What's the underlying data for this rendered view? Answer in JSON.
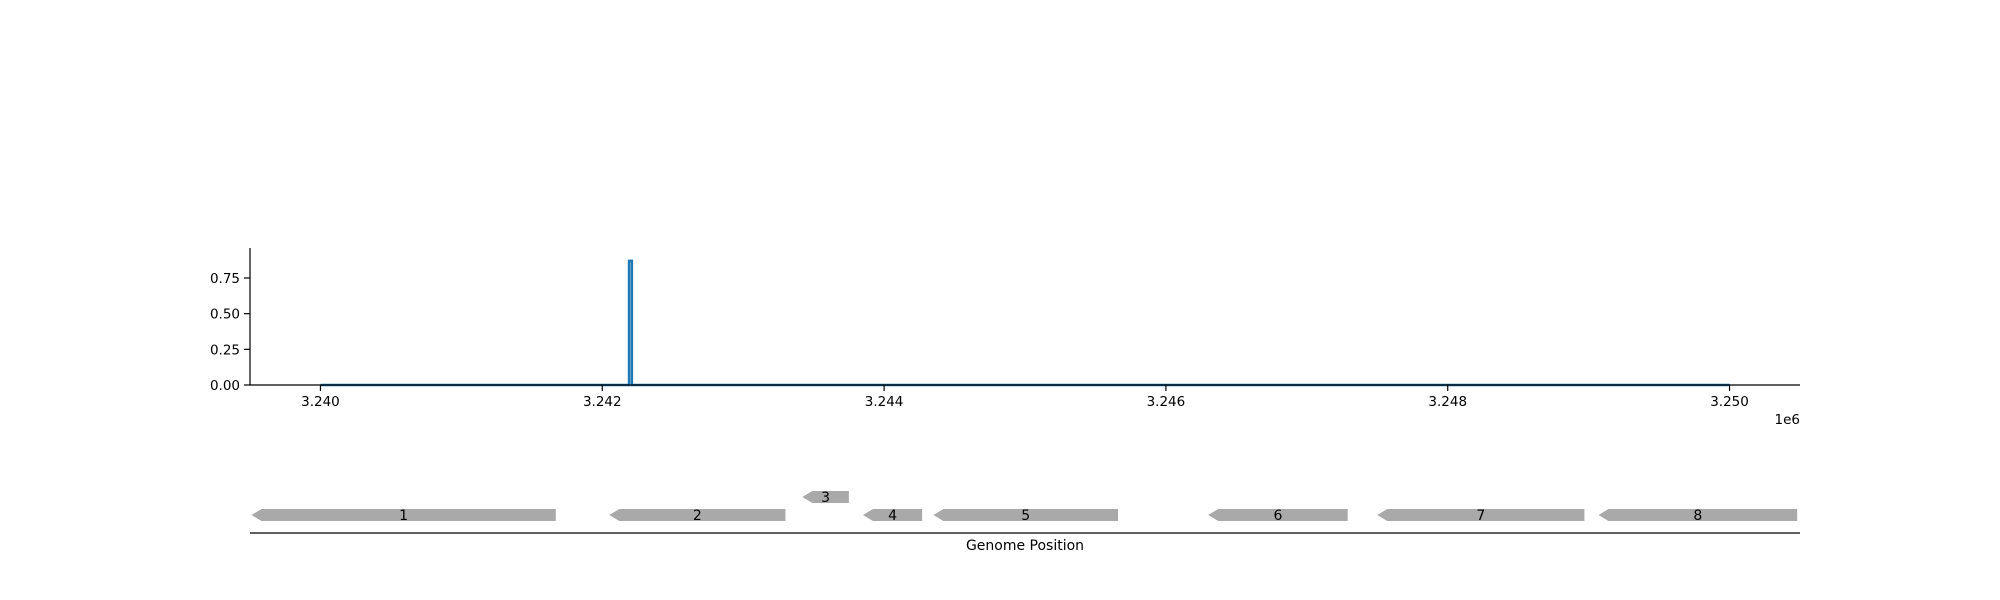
{
  "chart_data": [
    {
      "type": "line",
      "title": "",
      "xlabel": "",
      "ylabel": "",
      "x_offset_label": "1e6",
      "xlim": [
        3.2395,
        3.2505
      ],
      "ylim": [
        0.0,
        0.95
      ],
      "x_ticks": [
        3.24,
        3.242,
        3.244,
        3.246,
        3.248,
        3.25
      ],
      "x_tick_labels": [
        "3.240",
        "3.242",
        "3.244",
        "3.246",
        "3.248",
        "3.250"
      ],
      "y_ticks": [
        0.0,
        0.25,
        0.5,
        0.75
      ],
      "y_tick_labels": [
        "0.00",
        "0.25",
        "0.50",
        "0.75"
      ],
      "grid": false,
      "series": [
        {
          "color": "#1f77b4",
          "x": [
            3.24,
            3.24219,
            3.24219,
            3.24221,
            3.24221,
            3.25
          ],
          "y": [
            0.0,
            0.0,
            0.87,
            0.87,
            0.0,
            0.0
          ]
        }
      ]
    },
    {
      "type": "gene-map",
      "xlabel": "Genome Position",
      "xlim": [
        3.2395,
        3.2505
      ],
      "genes": [
        {
          "label": "1",
          "start": 3.23951,
          "end": 3.24167,
          "strand": "-",
          "track": 0
        },
        {
          "label": "2",
          "start": 3.24205,
          "end": 3.2433,
          "strand": "-",
          "track": 0
        },
        {
          "label": "3",
          "start": 3.24342,
          "end": 3.24375,
          "strand": "-",
          "track": 1
        },
        {
          "label": "4",
          "start": 3.24385,
          "end": 3.24427,
          "strand": "-",
          "track": 0
        },
        {
          "label": "5",
          "start": 3.24435,
          "end": 3.24566,
          "strand": "-",
          "track": 0
        },
        {
          "label": "6",
          "start": 3.2463,
          "end": 3.24729,
          "strand": "-",
          "track": 0
        },
        {
          "label": "7",
          "start": 3.2475,
          "end": 3.24897,
          "strand": "-",
          "track": 0
        },
        {
          "label": "8",
          "start": 3.24907,
          "end": 3.25048,
          "strand": "-",
          "track": 0
        }
      ],
      "gene_color": "#a9a9a9"
    }
  ]
}
